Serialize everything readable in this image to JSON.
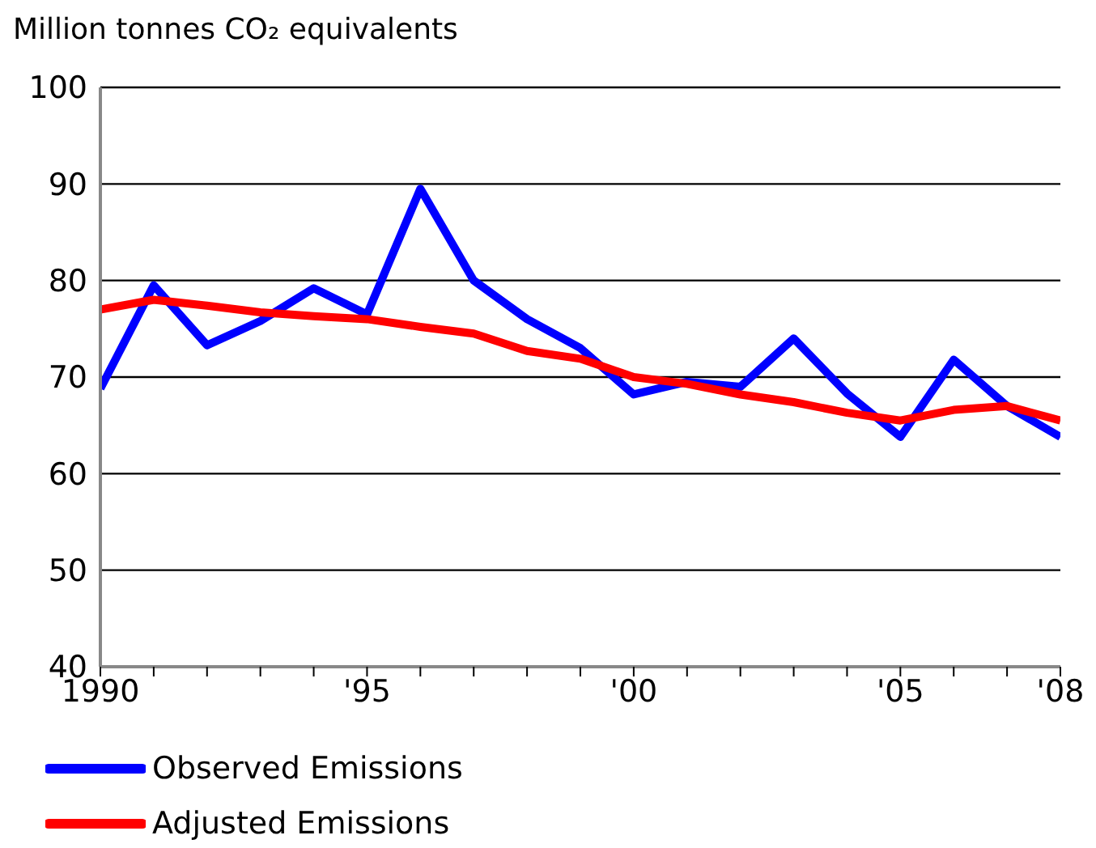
{
  "chart_data": {
    "type": "line",
    "ylabel": "Million tonnes CO₂ equivalents",
    "x": [
      1990,
      1991,
      1992,
      1993,
      1994,
      1995,
      1996,
      1997,
      1998,
      1999,
      2000,
      2001,
      2002,
      2003,
      2004,
      2005,
      2006,
      2007,
      2008
    ],
    "series": [
      {
        "name": "Observed Emissions",
        "color": "#0000ff",
        "values": [
          68.8,
          79.5,
          73.3,
          75.8,
          79.2,
          76.5,
          89.5,
          80,
          76,
          73,
          68.2,
          69.5,
          69,
          74,
          68.3,
          63.8,
          71.8,
          67,
          63.8
        ]
      },
      {
        "name": "Adjusted Emissions",
        "color": "#ff0000",
        "values": [
          77,
          78,
          77.4,
          76.7,
          76.3,
          76,
          75.2,
          74.5,
          72.7,
          71.9,
          70,
          69.3,
          68.2,
          67.4,
          66.3,
          65.5,
          66.6,
          67,
          65.5
        ]
      }
    ],
    "xlim": [
      1990,
      2008
    ],
    "xticks": [
      {
        "value": 1990,
        "label": "1990"
      },
      {
        "value": 1991,
        "label": null
      },
      {
        "value": 1992,
        "label": null
      },
      {
        "value": 1993,
        "label": null
      },
      {
        "value": 1994,
        "label": null
      },
      {
        "value": 1995,
        "label": "'95"
      },
      {
        "value": 1996,
        "label": null
      },
      {
        "value": 1997,
        "label": null
      },
      {
        "value": 1998,
        "label": null
      },
      {
        "value": 1999,
        "label": null
      },
      {
        "value": 2000,
        "label": "'00"
      },
      {
        "value": 2001,
        "label": null
      },
      {
        "value": 2002,
        "label": null
      },
      {
        "value": 2003,
        "label": null
      },
      {
        "value": 2004,
        "label": null
      },
      {
        "value": 2005,
        "label": "'05"
      },
      {
        "value": 2006,
        "label": null
      },
      {
        "value": 2007,
        "label": null
      },
      {
        "value": 2008,
        "label": "'08"
      }
    ],
    "ylim": [
      40,
      100
    ],
    "yticks": [
      40,
      50,
      60,
      70,
      80,
      90,
      100
    ],
    "grid": "y",
    "legend": "bottom left",
    "marker": "none",
    "line_style": "solid"
  }
}
